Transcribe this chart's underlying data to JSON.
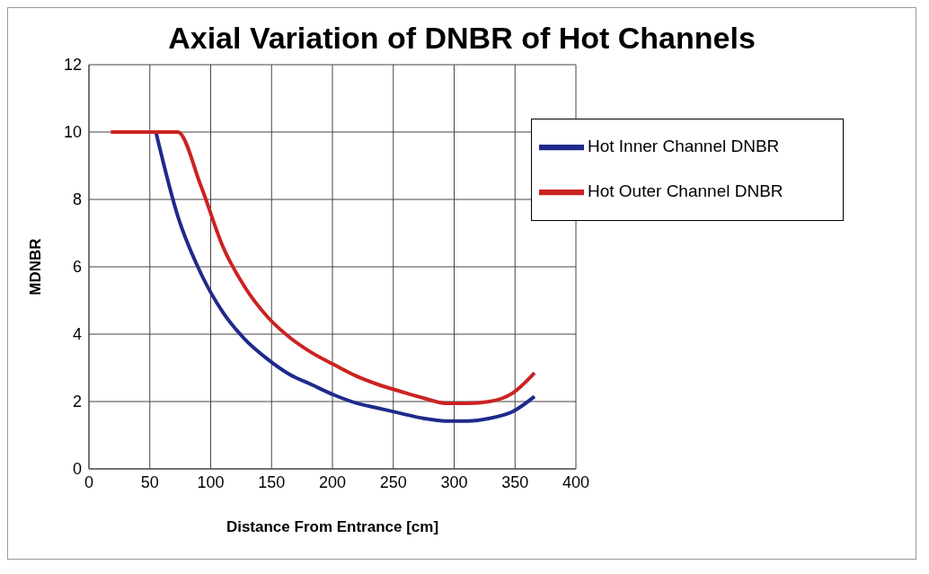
{
  "chart_data": {
    "type": "line",
    "title": "Axial Variation of DNBR of Hot Channels",
    "xlabel": "Distance From Entrance [cm]",
    "ylabel": "MDNBR",
    "xlim": [
      0,
      400
    ],
    "xticks": [
      0,
      50,
      100,
      150,
      200,
      250,
      300,
      350,
      400
    ],
    "ylim": [
      0,
      12
    ],
    "yticks": [
      0,
      2,
      4,
      6,
      8,
      10,
      12
    ],
    "grid": true,
    "legend": "right",
    "marker": "none",
    "line_style": "solid",
    "series": [
      {
        "name": "Hot Inner Channel DNBR",
        "color": "#1f2a8a",
        "x": [
          55,
          73,
          92,
          110,
          128,
          147,
          165,
          183,
          201,
          220,
          238,
          256,
          275,
          293,
          311,
          329,
          348,
          366
        ],
        "values": [
          10,
          7.5,
          5.8,
          4.65,
          3.85,
          3.25,
          2.8,
          2.5,
          2.2,
          1.95,
          1.8,
          1.65,
          1.5,
          1.42,
          1.42,
          1.5,
          1.7,
          2.15
        ]
      },
      {
        "name": "Hot Outer Channel DNBR",
        "color": "#cc2222",
        "x": [
          18,
          73,
          92,
          110,
          128,
          147,
          165,
          183,
          201,
          220,
          238,
          256,
          275,
          293,
          311,
          329,
          348,
          366
        ],
        "values": [
          10,
          10,
          8.4,
          6.6,
          5.4,
          4.5,
          3.9,
          3.45,
          3.1,
          2.75,
          2.5,
          2.3,
          2.1,
          1.95,
          1.95,
          2.0,
          2.25,
          2.85
        ]
      }
    ]
  }
}
